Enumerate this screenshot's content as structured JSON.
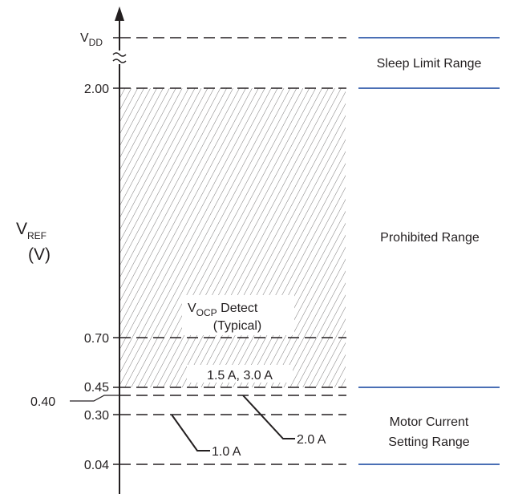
{
  "axis": {
    "title_main": "V",
    "title_sub": "REF",
    "unit": "(V)",
    "vdd_main": "V",
    "vdd_sub": "DD"
  },
  "ticks": [
    {
      "value": "2.00"
    },
    {
      "value": "0.70"
    },
    {
      "value": "0.45"
    },
    {
      "value": "0.40"
    },
    {
      "value": "0.30"
    },
    {
      "value": "0.04"
    }
  ],
  "ranges": {
    "sleep": "Sleep Limit Range",
    "prohibited": "Prohibited Range",
    "motor_line1": "Motor Current",
    "motor_line2": "Setting Range"
  },
  "annotations": {
    "vocp_main": "V",
    "vocp_sub": "OCP",
    "vocp_rest": " Detect",
    "vocp_typical": "(Typical)",
    "current_45": "1.5 A, 3.0 A",
    "current_40": "2.0 A",
    "current_30": "1.0 A"
  },
  "colors": {
    "range_boundary": "#4a6fb5",
    "lines": "#231f20"
  }
}
